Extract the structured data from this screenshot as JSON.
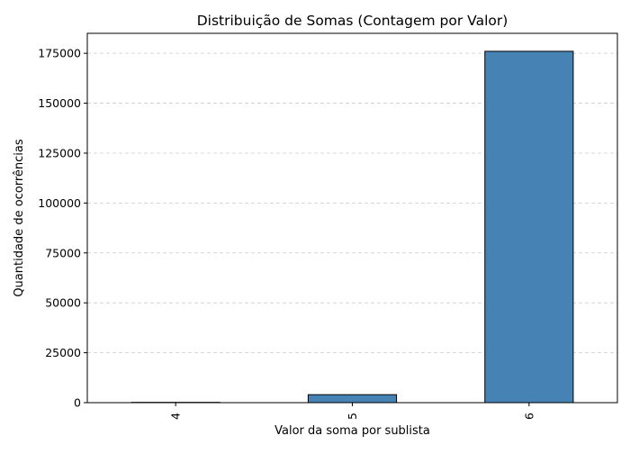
{
  "chart_data": {
    "type": "bar",
    "title": "Distribuição de Somas (Contagem por Valor)",
    "xlabel": "Valor da soma por sublista",
    "ylabel": "Quantidade de ocorrências",
    "categories": [
      "4",
      "5",
      "6"
    ],
    "values": [
      150,
      4000,
      176000
    ],
    "ylim": [
      0,
      185000
    ],
    "yticks": [
      0,
      25000,
      50000,
      75000,
      100000,
      125000,
      150000,
      175000
    ],
    "ytick_labels": [
      "0",
      "25000",
      "50000",
      "75000",
      "100000",
      "125000",
      "150000",
      "175000"
    ],
    "x_tick_rotation": "vertical",
    "grid": "y-dashed",
    "legend": "none",
    "colors": {
      "bar_fill": "#4682b4",
      "bar_edge": "#000000",
      "grid": "#cccccc",
      "axes": "#000000"
    }
  }
}
